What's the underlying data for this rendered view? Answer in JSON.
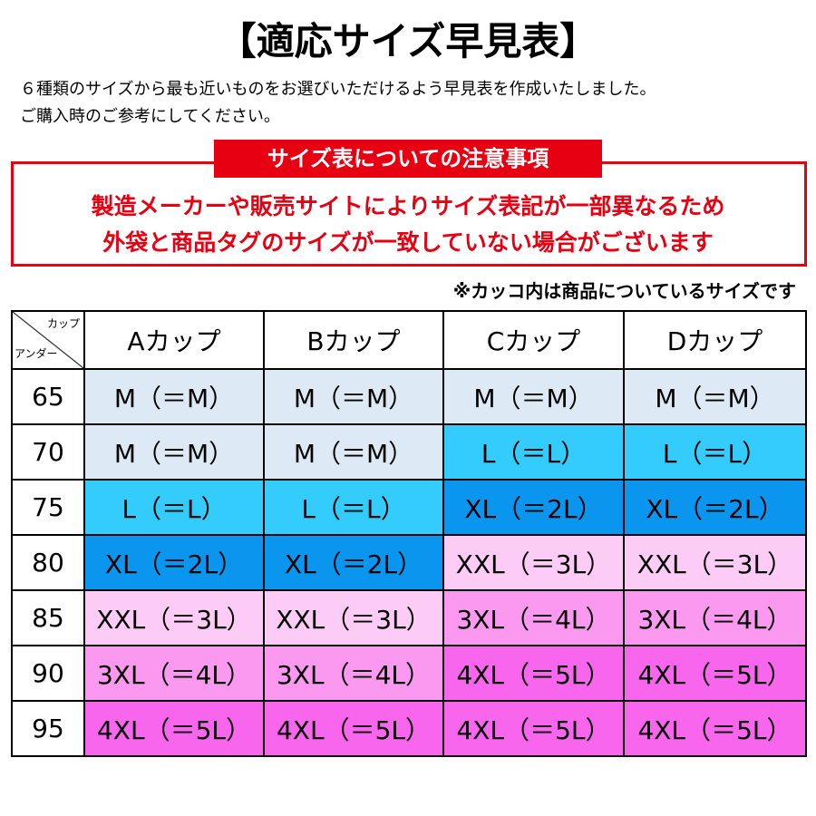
{
  "header": {
    "title": "【適応サイズ早見表】",
    "intro": [
      "６種類のサイズから最も近いものをお選びいただけるよう早見表を作成いたしました。",
      "ご購入時のご参考にしてください。"
    ]
  },
  "notice": {
    "heading": "サイズ表についての注意事項",
    "lines": [
      "製造メーカーや販売サイトによりサイズ表記が一部異なるため",
      "外袋と商品タグのサイズが一致していない場合がございます"
    ],
    "color": "#e60012"
  },
  "note": "※カッコ内は商品についているサイズです",
  "table": {
    "corner": {
      "top": "カップ",
      "bottom": "アンダー"
    },
    "columns": [
      "Aカップ",
      "Bカップ",
      "Cカップ",
      "Dカップ"
    ],
    "rows": [
      {
        "under": "65",
        "cells": [
          {
            "label": "M（＝M）",
            "color": "#dde9f4"
          },
          {
            "label": "M（＝M）",
            "color": "#dde9f4"
          },
          {
            "label": "M（＝M）",
            "color": "#dde9f4"
          },
          {
            "label": "M（＝M）",
            "color": "#dde9f4"
          }
        ]
      },
      {
        "under": "70",
        "cells": [
          {
            "label": "M（＝M）",
            "color": "#dde9f4"
          },
          {
            "label": "M（＝M）",
            "color": "#dde9f4"
          },
          {
            "label": "L（＝L）",
            "color": "#33ccfc"
          },
          {
            "label": "L（＝L）",
            "color": "#33ccfc"
          }
        ]
      },
      {
        "under": "75",
        "cells": [
          {
            "label": "L（＝L）",
            "color": "#33ccfc"
          },
          {
            "label": "L（＝L）",
            "color": "#33ccfc"
          },
          {
            "label": "XL（＝2L）",
            "color": "#0a96ee"
          },
          {
            "label": "XL（＝2L）",
            "color": "#0a96ee"
          }
        ]
      },
      {
        "under": "80",
        "cells": [
          {
            "label": "XL（＝2L）",
            "color": "#0a96ee"
          },
          {
            "label": "XL（＝2L）",
            "color": "#0a96ee"
          },
          {
            "label": "XXL（＝3L）",
            "color": "#fcccf6"
          },
          {
            "label": "XXL（＝3L）",
            "color": "#fcccf6"
          }
        ]
      },
      {
        "under": "85",
        "cells": [
          {
            "label": "XXL（＝3L）",
            "color": "#fcccf6"
          },
          {
            "label": "XXL（＝3L）",
            "color": "#fcccf6"
          },
          {
            "label": "3XL（＝4L）",
            "color": "#fb99f0"
          },
          {
            "label": "3XL（＝4L）",
            "color": "#fb99f0"
          }
        ]
      },
      {
        "under": "90",
        "cells": [
          {
            "label": "3XL（＝4L）",
            "color": "#fb99f0"
          },
          {
            "label": "3XL（＝4L）",
            "color": "#fb99f0"
          },
          {
            "label": "4XL（＝5L）",
            "color": "#f866ee"
          },
          {
            "label": "4XL（＝5L）",
            "color": "#f866ee"
          }
        ]
      },
      {
        "under": "95",
        "cells": [
          {
            "label": "4XL（＝5L）",
            "color": "#f866ee"
          },
          {
            "label": "4XL（＝5L）",
            "color": "#f866ee"
          },
          {
            "label": "4XL（＝5L）",
            "color": "#f866ee"
          },
          {
            "label": "4XL（＝5L）",
            "color": "#f866ee"
          }
        ]
      }
    ]
  }
}
